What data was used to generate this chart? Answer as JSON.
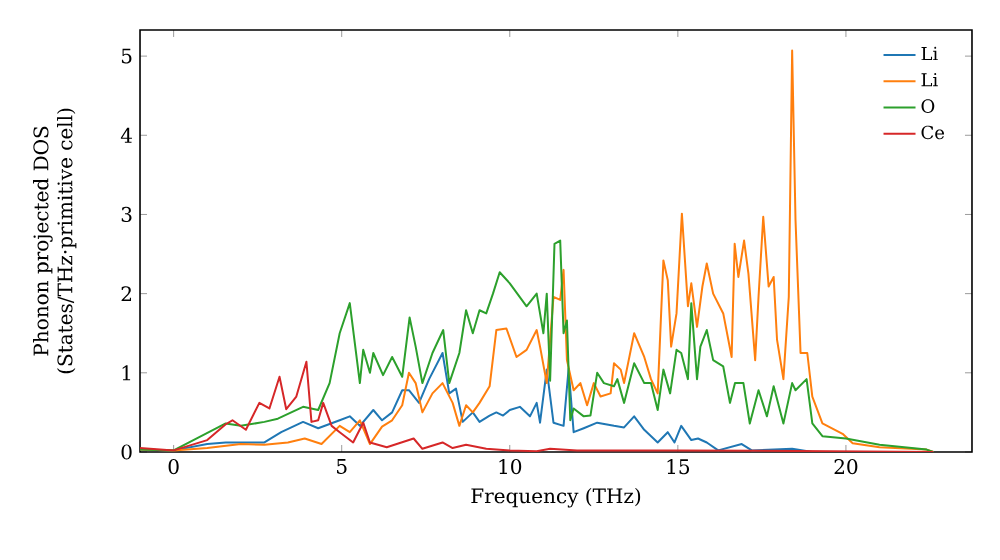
{
  "chart_data": {
    "type": "line",
    "xlabel": "Frequency (THz)",
    "ylabel": "Phonon projected DOS\n(States/THz·primitive cell)",
    "xlim": [
      -1,
      23.75
    ],
    "ylim": [
      0,
      5.33
    ],
    "xticks": [
      0,
      5,
      10,
      15,
      20
    ],
    "yticks": [
      0,
      1,
      2,
      3,
      4,
      5
    ],
    "legend": "top right",
    "grid": false,
    "series": [
      {
        "name": "Li",
        "color": "#1f77b4",
        "x": [
          -1,
          0,
          1,
          1.55,
          2.7,
          3.2,
          3.85,
          4.3,
          4.94,
          5.24,
          5.54,
          5.94,
          6.2,
          6.5,
          6.8,
          7.0,
          7.3,
          7.6,
          8.0,
          8.2,
          8.4,
          8.6,
          8.9,
          9.1,
          9.4,
          9.6,
          9.8,
          10.0,
          10.3,
          10.6,
          10.8,
          10.9,
          11.1,
          11.3,
          11.6,
          11.75,
          11.9,
          12.2,
          12.6,
          13.1,
          13.4,
          13.7,
          14.0,
          14.4,
          14.7,
          14.9,
          15.1,
          15.4,
          15.6,
          15.86,
          16.2,
          16.9,
          17.2,
          18.4,
          19.0,
          22.6
        ],
        "values": [
          0.03,
          0.02,
          0.1,
          0.12,
          0.12,
          0.25,
          0.38,
          0.3,
          0.4,
          0.45,
          0.33,
          0.53,
          0.4,
          0.5,
          0.78,
          0.78,
          0.62,
          0.92,
          1.25,
          0.74,
          0.8,
          0.38,
          0.5,
          0.38,
          0.46,
          0.5,
          0.46,
          0.53,
          0.57,
          0.45,
          0.62,
          0.37,
          1.04,
          0.37,
          0.33,
          1.05,
          0.25,
          0.3,
          0.37,
          0.33,
          0.31,
          0.45,
          0.28,
          0.12,
          0.25,
          0.12,
          0.33,
          0.15,
          0.17,
          0.12,
          0.02,
          0.1,
          0.02,
          0.04,
          0.0,
          0.0
        ]
      },
      {
        "name": "Li",
        "color": "#ff7f0e",
        "x": [
          -1,
          0,
          1,
          2,
          2.7,
          3.4,
          3.9,
          4.4,
          4.94,
          5.24,
          5.54,
          5.84,
          6.2,
          6.5,
          6.8,
          7.0,
          7.2,
          7.4,
          7.7,
          8.0,
          8.3,
          8.5,
          8.7,
          8.9,
          9.1,
          9.4,
          9.6,
          9.9,
          10.2,
          10.5,
          10.8,
          10.9,
          11.1,
          11.3,
          11.5,
          11.6,
          11.7,
          11.9,
          12.1,
          12.3,
          12.5,
          12.7,
          13.0,
          13.1,
          13.3,
          13.4,
          13.7,
          14.0,
          14.2,
          14.4,
          14.57,
          14.7,
          14.8,
          14.96,
          15.12,
          15.3,
          15.4,
          15.57,
          15.73,
          15.86,
          16.05,
          16.35,
          16.6,
          16.69,
          16.8,
          16.97,
          17.1,
          17.3,
          17.4,
          17.54,
          17.7,
          17.85,
          17.95,
          18.14,
          18.3,
          18.4,
          18.5,
          18.65,
          18.85,
          19.0,
          19.3,
          19.9,
          20.2,
          21.0,
          22.4,
          22.6
        ],
        "values": [
          0.03,
          0.02,
          0.05,
          0.1,
          0.09,
          0.12,
          0.17,
          0.1,
          0.33,
          0.25,
          0.4,
          0.1,
          0.32,
          0.4,
          0.59,
          1.0,
          0.87,
          0.5,
          0.74,
          0.87,
          0.62,
          0.33,
          0.59,
          0.5,
          0.62,
          0.83,
          1.54,
          1.56,
          1.2,
          1.29,
          1.54,
          1.33,
          0.87,
          1.96,
          1.92,
          2.3,
          1.16,
          0.78,
          0.87,
          0.59,
          0.87,
          0.7,
          0.74,
          1.12,
          1.04,
          0.87,
          1.5,
          1.2,
          0.92,
          0.74,
          2.42,
          2.17,
          1.33,
          1.75,
          3.01,
          1.84,
          2.13,
          1.58,
          2.09,
          2.38,
          2.0,
          1.75,
          1.2,
          2.63,
          2.21,
          2.67,
          2.25,
          1.16,
          1.96,
          2.97,
          2.09,
          2.21,
          1.42,
          0.92,
          1.96,
          5.07,
          2.93,
          1.25,
          1.25,
          0.7,
          0.36,
          0.23,
          0.11,
          0.06,
          0.03,
          0.0
        ]
      },
      {
        "name": "O",
        "color": "#2ca02c",
        "x": [
          -1,
          0,
          1.55,
          2.0,
          2.7,
          3.1,
          3.85,
          4.3,
          4.64,
          4.94,
          5.24,
          5.54,
          5.64,
          5.84,
          5.94,
          6.23,
          6.5,
          6.8,
          7.02,
          7.2,
          7.4,
          7.7,
          8.02,
          8.2,
          8.5,
          8.7,
          8.9,
          9.1,
          9.3,
          9.5,
          9.7,
          10.0,
          10.5,
          10.8,
          11.0,
          11.1,
          11.2,
          11.33,
          11.5,
          11.6,
          11.7,
          11.8,
          11.9,
          12.2,
          12.4,
          12.6,
          12.8,
          13.1,
          13.2,
          13.4,
          13.7,
          14.0,
          14.2,
          14.4,
          14.57,
          14.77,
          14.96,
          15.1,
          15.3,
          15.4,
          15.57,
          15.67,
          15.86,
          16.05,
          16.35,
          16.55,
          16.7,
          16.95,
          17.14,
          17.4,
          17.65,
          17.85,
          18.14,
          18.4,
          18.5,
          18.83,
          19.0,
          19.3,
          20.0,
          21.0,
          22.4,
          22.6
        ],
        "values": [
          0.03,
          0.02,
          0.36,
          0.33,
          0.38,
          0.42,
          0.57,
          0.53,
          0.87,
          1.5,
          1.88,
          0.87,
          1.29,
          1.0,
          1.25,
          0.97,
          1.2,
          0.95,
          1.7,
          1.33,
          0.87,
          1.25,
          1.54,
          0.87,
          1.25,
          1.79,
          1.5,
          1.79,
          1.75,
          2.0,
          2.27,
          2.13,
          1.84,
          2.0,
          1.5,
          2.0,
          0.9,
          2.63,
          2.67,
          1.5,
          1.66,
          0.4,
          0.55,
          0.45,
          0.46,
          1.0,
          0.87,
          0.83,
          0.92,
          0.62,
          1.12,
          0.87,
          0.87,
          0.53,
          1.04,
          0.74,
          1.29,
          1.25,
          0.92,
          1.88,
          0.92,
          1.33,
          1.54,
          1.16,
          1.08,
          0.62,
          0.87,
          0.87,
          0.36,
          0.78,
          0.45,
          0.83,
          0.36,
          0.87,
          0.78,
          0.92,
          0.36,
          0.2,
          0.17,
          0.09,
          0.03,
          0.0
        ]
      },
      {
        "name": "Ce",
        "color": "#d62728",
        "x": [
          -1,
          0,
          1,
          1.55,
          1.75,
          2.15,
          2.55,
          2.85,
          3.15,
          3.35,
          3.65,
          3.95,
          4.1,
          4.3,
          4.45,
          4.7,
          4.94,
          5.34,
          5.64,
          5.84,
          6.34,
          7.14,
          7.4,
          8.0,
          8.3,
          8.7,
          9.3,
          10.0,
          10.8,
          11.2,
          12.0,
          15.0,
          19.5,
          22.6
        ],
        "values": [
          0.05,
          0.02,
          0.15,
          0.35,
          0.4,
          0.28,
          0.62,
          0.55,
          0.95,
          0.54,
          0.7,
          1.14,
          0.38,
          0.4,
          0.62,
          0.33,
          0.25,
          0.12,
          0.37,
          0.12,
          0.06,
          0.17,
          0.04,
          0.12,
          0.05,
          0.09,
          0.04,
          0.02,
          0.01,
          0.04,
          0.02,
          0.02,
          0.01,
          0.0
        ]
      }
    ]
  }
}
